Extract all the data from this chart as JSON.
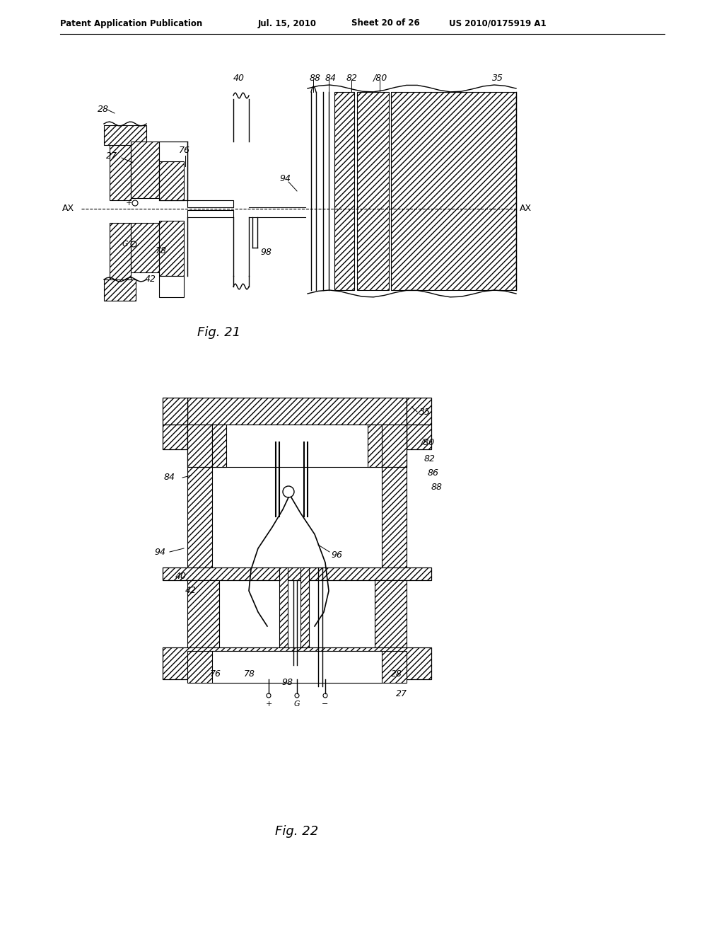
{
  "background_color": "#ffffff",
  "header_text": "Patent Application Publication",
  "header_date": "Jul. 15, 2010",
  "header_sheet": "Sheet 20 of 26",
  "header_patent": "US 2010/0175919 A1",
  "fig21_caption": "Fig. 21",
  "fig22_caption": "Fig. 22",
  "line_color": "#000000",
  "text_color": "#000000"
}
